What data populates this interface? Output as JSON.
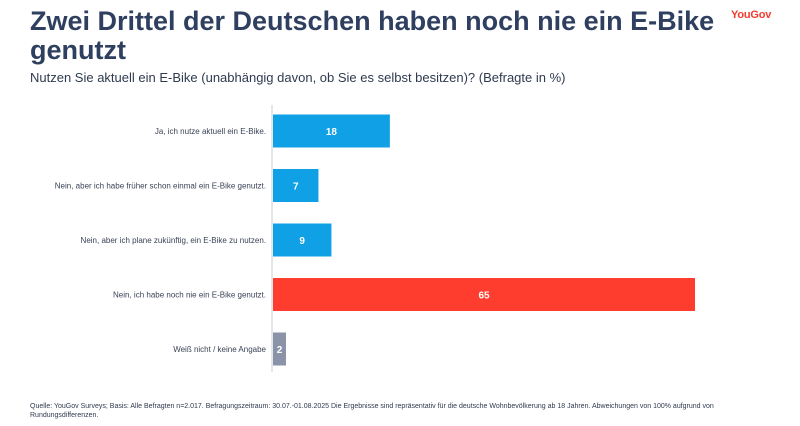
{
  "header": {
    "title": "Zwei Drittel der Deutschen haben noch nie ein E-Bike genutzt",
    "brand": "YouGov",
    "subtitle": "Nutzen Sie aktuell ein E-Bike (unabhängig davon, ob Sie es selbst besitzen)? (Befragte in %)"
  },
  "footer": {
    "source": "Quelle: YouGov Surveys; Basis: Alle Befragten n=2.017. Befragungszeitraum: 30.07.-01.08.2025 Die Ergebnisse sind repräsentativ für die deutsche Wohnbevölkerung ab 18 Jahren. Abweichungen von 100% aufgrund von Rundungsdifferenzen."
  },
  "colors": {
    "title": "#2f3f5f",
    "brand": "#f23b2f",
    "bar_default": "#0fa0e6",
    "bar_highlight": "#ff3d2e",
    "bar_neutral": "#8a93a8",
    "axis": "#c7ccd6"
  },
  "chart_data": {
    "type": "bar",
    "orientation": "horizontal",
    "categories": [
      "Ja, ich nutze aktuell ein E-Bike.",
      "Nein, aber ich habe früher schon einmal ein E-Bike genutzt.",
      "Nein, aber ich plane zukünftig, ein E-Bike zu nutzen.",
      "Nein, ich habe noch nie ein E-Bike genutzt.",
      "Weiß nicht / keine Angabe"
    ],
    "values": [
      18,
      7,
      9,
      65,
      2
    ],
    "bar_colors": [
      "#0fa0e6",
      "#0fa0e6",
      "#0fa0e6",
      "#ff3d2e",
      "#8a93a8"
    ],
    "data_labels": true,
    "xlim": [
      0,
      65
    ],
    "grid": false,
    "title": "",
    "xlabel": "",
    "ylabel": ""
  }
}
